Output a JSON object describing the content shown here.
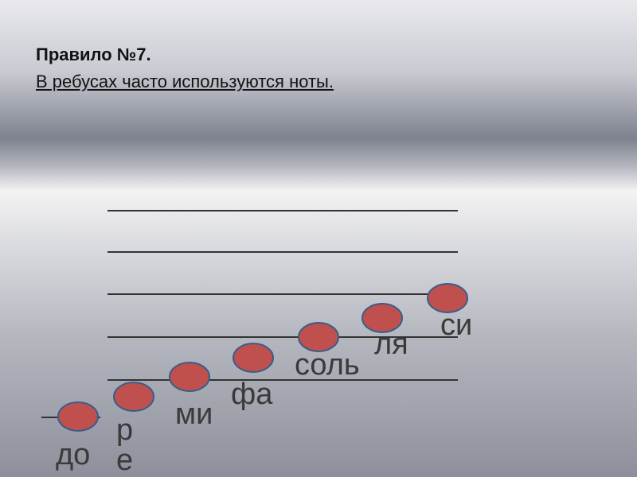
{
  "header": {
    "title": "Правило №7.",
    "subtitle": "В ребусах часто используются ноты."
  },
  "notes": [
    {
      "label": "до"
    },
    {
      "label": "ре"
    },
    {
      "label": "ми"
    },
    {
      "label": "фа"
    },
    {
      "label": "соль"
    },
    {
      "label": "ля"
    },
    {
      "label": "си"
    }
  ]
}
